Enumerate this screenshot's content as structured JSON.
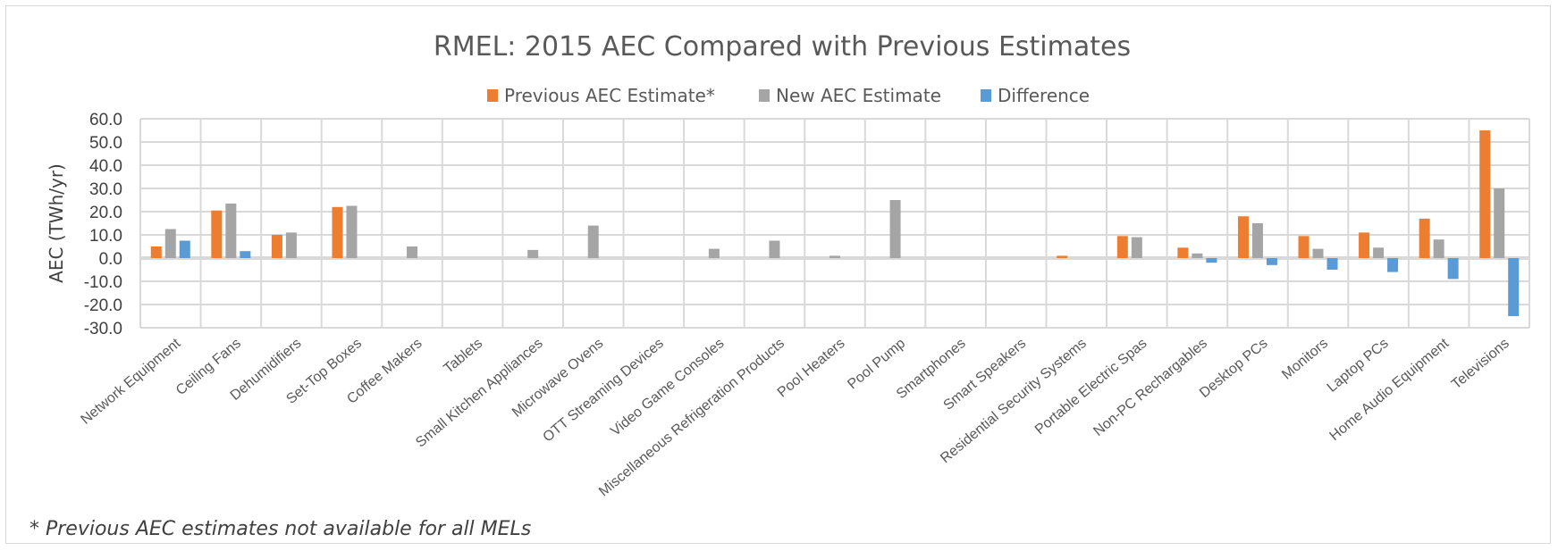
{
  "chart_data": {
    "type": "bar",
    "title": "RMEL: 2015 AEC Compared with Previous Estimates",
    "ylabel": "AEC (TWh/yr)",
    "xlabel": "",
    "ylim": [
      -30,
      60
    ],
    "yticks": [
      "60.0",
      "50.0",
      "40.0",
      "30.0",
      "20.0",
      "10.0",
      "0.0",
      "-10.0",
      "-20.0",
      "-30.0"
    ],
    "ytick_values": [
      60,
      50,
      40,
      30,
      20,
      10,
      0,
      -10,
      -20,
      -30
    ],
    "grid": true,
    "legend_position": "top",
    "categories": [
      "Network Equipment",
      "Ceiling Fans",
      "Dehumidifiers",
      "Set-Top Boxes",
      "Coffee Makers",
      "Tablets",
      "Small Kitchen Appliances",
      "Microwave Ovens",
      "OTT Streaming Devices",
      "Video Game Consoles",
      "Miscellaneous Refrigeration Products",
      "Pool Heaters",
      "Pool Pump",
      "Smartphones",
      "Smart Speakers",
      "Residential Security Systems",
      "Portable Electric Spas",
      "Non-PC Rechargables",
      "Desktop PCs",
      "Monitors",
      "Laptop PCs",
      "Home Audio Equipment",
      "Televisions"
    ],
    "series": [
      {
        "name": "Previous AEC Estimate*",
        "color": "#ed7d31",
        "values": [
          5,
          20.5,
          10,
          22,
          0,
          0,
          0,
          0,
          0,
          0,
          0,
          0,
          0,
          0,
          0,
          1,
          9.5,
          4.5,
          18,
          9.5,
          11,
          17,
          55
        ]
      },
      {
        "name": "New AEC Estimate",
        "color": "#a5a5a5",
        "values": [
          12.5,
          23.5,
          11,
          22.5,
          5,
          0,
          3.5,
          14,
          0,
          4,
          7.5,
          1,
          25,
          0,
          0,
          0,
          9,
          2,
          15,
          4,
          4.5,
          8,
          30
        ]
      },
      {
        "name": "Difference",
        "color": "#5b9bd5",
        "values": [
          7.5,
          3,
          0,
          0,
          0,
          0,
          0,
          0,
          0,
          0,
          0,
          0,
          0,
          0,
          0,
          0,
          0,
          -2,
          -3,
          -5,
          -6,
          -9,
          -25
        ]
      }
    ]
  },
  "footnote": "* Previous AEC estimates not available for all MELs"
}
